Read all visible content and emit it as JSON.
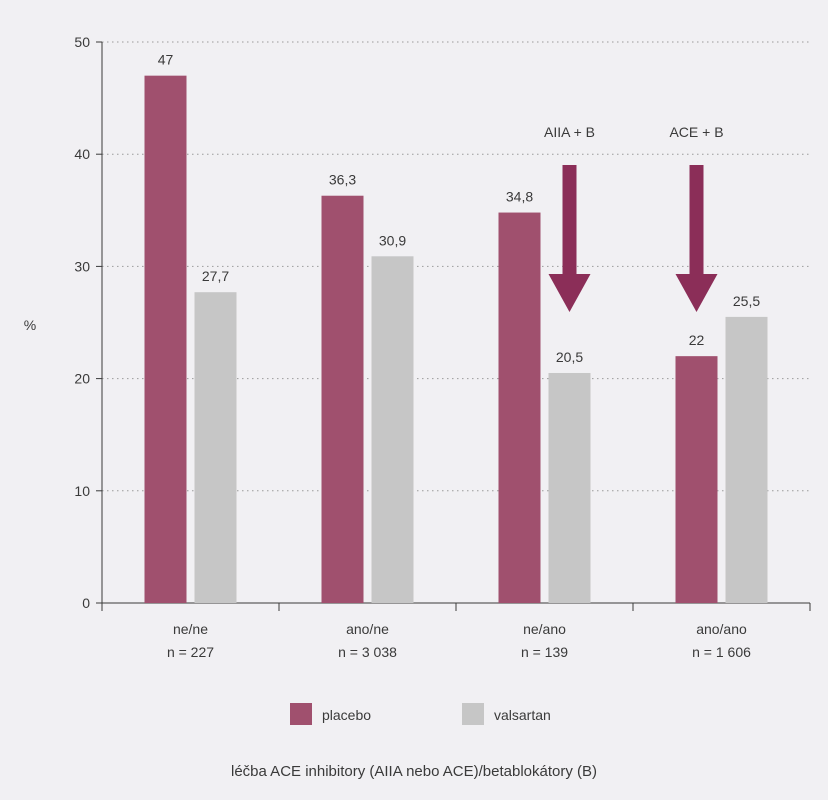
{
  "chart_data": {
    "type": "bar",
    "categories": [
      "ne/ne",
      "ano/ne",
      "ne/ano",
      "ano/ano"
    ],
    "category_n": [
      "n = 227",
      "n = 3 038",
      "n = 139",
      "n = 1 606"
    ],
    "series": [
      {
        "name": "placebo",
        "color": "#a0506e",
        "values": [
          47,
          36.3,
          34.8,
          22
        ],
        "labels": [
          "47",
          "36,3",
          "34,8",
          "22"
        ]
      },
      {
        "name": "valsartan",
        "color": "#c6c6c6",
        "values": [
          27.7,
          30.9,
          20.5,
          25.5
        ],
        "labels": [
          "27,7",
          "30,9",
          "20,5",
          "25,5"
        ]
      }
    ],
    "ylabel": "%",
    "xlabel": "léčba ACE inhibitory (AIIA nebo ACE)/betablokátory (B)",
    "ylim": [
      0,
      50
    ],
    "yticks": [
      0,
      10,
      20,
      30,
      40,
      50
    ],
    "grid": true,
    "legend_position": "bottom",
    "annotations": [
      {
        "text": "AIIA + B",
        "category": "ne/ano",
        "arrow_color": "#8b2e58"
      },
      {
        "text": "ACE + B",
        "category": "ano/ano",
        "arrow_color": "#8b2e58"
      }
    ]
  }
}
